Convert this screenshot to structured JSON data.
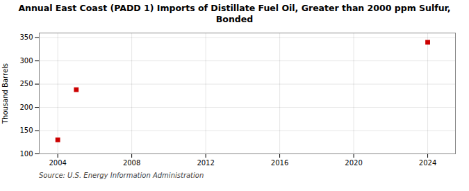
{
  "chart_data": {
    "type": "scatter",
    "title": "Annual East Coast (PADD 1) Imports of Distillate Fuel Oil, Greater than 2000 ppm Sulfur,\nBonded",
    "ylabel": "Thousand Barrels",
    "source": "Source: U.S. Energy Information Administration",
    "x": [
      2004,
      2005,
      2024
    ],
    "values": [
      130,
      238,
      340
    ],
    "color": "#cc0000",
    "marker": "square",
    "xlim": [
      2003.0,
      2025.5
    ],
    "ylim": [
      100,
      360
    ],
    "xticks": [
      2004,
      2008,
      2012,
      2016,
      2020,
      2024
    ],
    "yticks": [
      100,
      150,
      200,
      250,
      300,
      350
    ],
    "grid": true
  }
}
